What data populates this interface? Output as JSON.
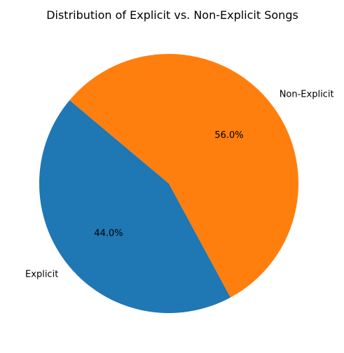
{
  "chart_data": {
    "type": "pie",
    "title": "Distribution of Explicit vs. Non-Explicit Songs",
    "categories": [
      "Explicit",
      "Non-Explicit"
    ],
    "values": [
      44.0,
      56.0
    ],
    "percent_labels": [
      "44.0%",
      "56.0%"
    ],
    "colors": [
      "#1f77b4",
      "#ff7f0e"
    ],
    "start_angle_deg": 140,
    "direction": "counterclockwise"
  }
}
